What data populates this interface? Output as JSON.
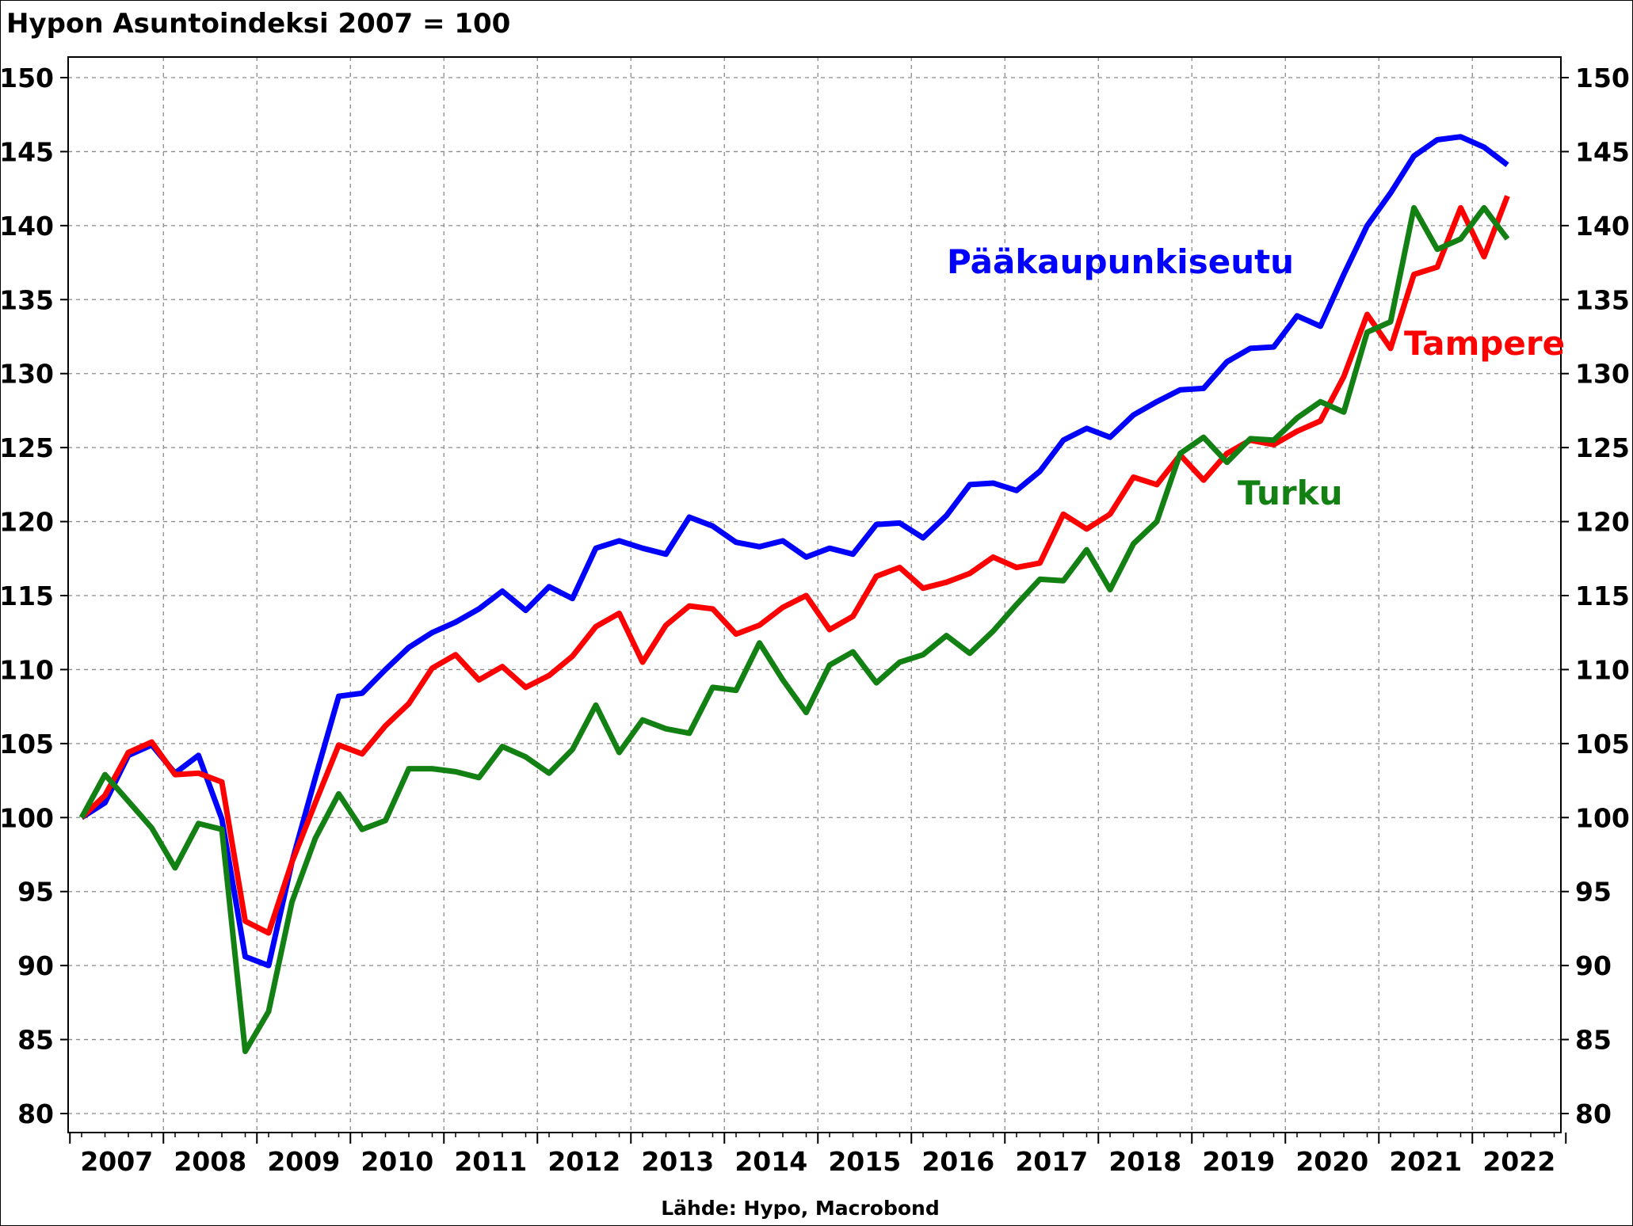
{
  "title": "Hypon Asuntoindeksi 2007 = 100",
  "source": "Lähde: Hypo, Macrobond",
  "chart_data": {
    "type": "line",
    "title": "Hypon Asuntoindeksi 2007 = 100",
    "x_unit": "quarter",
    "x_start": "2007 Q1",
    "x_end": "2022 Q2",
    "x_ticks": [
      "2007",
      "2008",
      "2009",
      "2010",
      "2011",
      "2012",
      "2013",
      "2014",
      "2015",
      "2016",
      "2017",
      "2018",
      "2019",
      "2020",
      "2021",
      "2022"
    ],
    "ylim": [
      80,
      150
    ],
    "y_ticks": [
      80,
      85,
      90,
      95,
      100,
      105,
      110,
      115,
      120,
      125,
      130,
      135,
      140,
      145,
      150
    ],
    "y_axis_both_sides": true,
    "grid": true,
    "grid_style": "dashed",
    "legend": "inline labels",
    "series": [
      {
        "name": "Pääkaupunkiseutu",
        "color": "#0000ff",
        "values": [
          100.0,
          101.0,
          104.2,
          104.9,
          103.0,
          104.2,
          99.9,
          90.6,
          90.0,
          97.0,
          102.7,
          108.2,
          108.4,
          110.0,
          111.5,
          112.5,
          113.2,
          114.1,
          115.3,
          114.0,
          115.6,
          114.8,
          118.2,
          118.7,
          118.2,
          117.8,
          120.3,
          119.7,
          118.6,
          118.3,
          118.7,
          117.6,
          118.2,
          117.8,
          119.8,
          119.9,
          118.9,
          120.4,
          122.5,
          122.6,
          122.1,
          123.4,
          125.5,
          126.3,
          125.7,
          127.2,
          128.1,
          128.9,
          129.0,
          130.8,
          131.7,
          131.8,
          133.9,
          133.2,
          136.7,
          140.0,
          142.2,
          144.7,
          145.8,
          146.0,
          145.3,
          144.1
        ]
      },
      {
        "name": "Tampere",
        "color": "#ff0000",
        "values": [
          100.0,
          101.5,
          104.4,
          105.1,
          102.9,
          103.0,
          102.4,
          93.0,
          92.2,
          97.0,
          101.0,
          104.9,
          104.3,
          106.2,
          107.7,
          110.1,
          111.0,
          109.3,
          110.2,
          108.8,
          109.6,
          110.9,
          112.9,
          113.8,
          110.5,
          113.0,
          114.3,
          114.1,
          112.4,
          113.0,
          114.2,
          115.0,
          112.7,
          113.6,
          116.3,
          116.9,
          115.5,
          115.9,
          116.5,
          117.6,
          116.9,
          117.2,
          120.5,
          119.5,
          120.5,
          123.0,
          122.5,
          124.5,
          122.8,
          124.6,
          125.5,
          125.2,
          126.1,
          126.8,
          129.8,
          134.0,
          131.7,
          136.7,
          137.2,
          141.2,
          137.9,
          142.0
        ]
      },
      {
        "name": "Turku",
        "color": "#138013",
        "values": [
          100.0,
          102.9,
          101.1,
          99.3,
          96.6,
          99.6,
          99.2,
          84.2,
          86.9,
          94.3,
          98.6,
          101.6,
          99.2,
          99.8,
          103.3,
          103.3,
          103.1,
          102.7,
          104.8,
          104.1,
          103.0,
          104.6,
          107.6,
          104.4,
          106.6,
          106.0,
          105.7,
          108.8,
          108.6,
          111.8,
          109.3,
          107.1,
          110.3,
          111.2,
          109.1,
          110.5,
          111.0,
          112.3,
          111.1,
          112.6,
          114.4,
          116.1,
          116.0,
          118.1,
          115.4,
          118.5,
          120.0,
          124.6,
          125.7,
          124.0,
          125.6,
          125.5,
          127.0,
          128.1,
          127.4,
          132.8,
          133.5,
          141.2,
          138.4,
          139.1,
          141.2,
          139.1
        ]
      }
    ]
  },
  "labels": {
    "paakaupunkiseutu": "Pääkaupunkiseutu",
    "tampere": "Tampere",
    "turku": "Turku"
  }
}
